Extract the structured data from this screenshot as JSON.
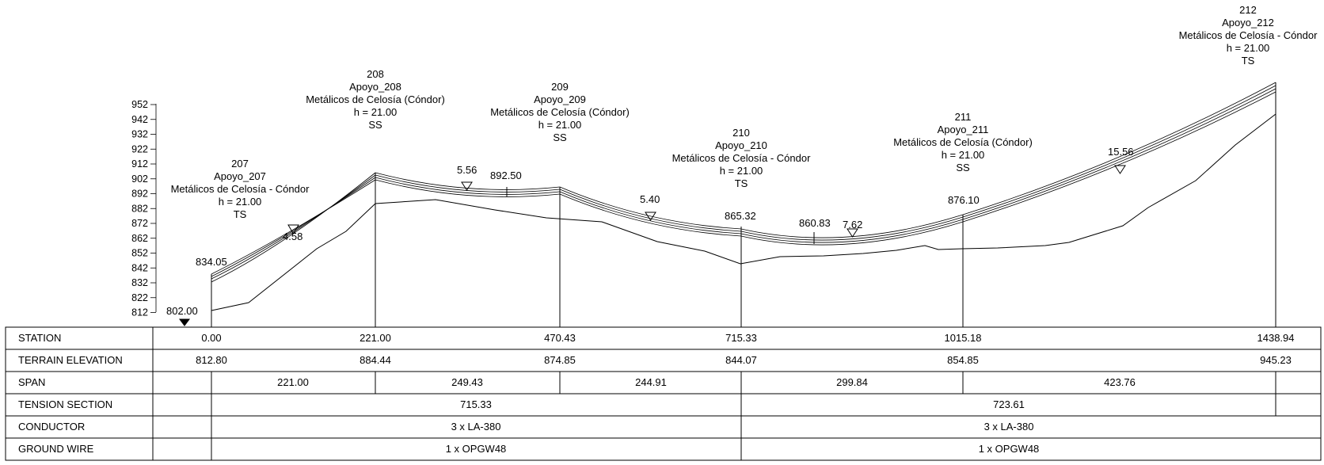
{
  "elevation_axis": {
    "ticks": [
      "952",
      "942",
      "932",
      "922",
      "912",
      "902",
      "892",
      "882",
      "872",
      "862",
      "852",
      "842",
      "832",
      "822",
      "812"
    ]
  },
  "supports": [
    {
      "number": "207",
      "name": "Apoyo_207",
      "type": "Metálicos de Celosía - Cóndor",
      "height": "h = 21.00",
      "function": "TS",
      "station": 0.0,
      "terrain": 812.8
    },
    {
      "number": "208",
      "name": "Apoyo_208",
      "type": "Metálicos de Celosía (Cóndor)",
      "height": "h = 21.00",
      "function": "SS",
      "station": 221.0,
      "terrain": 884.44
    },
    {
      "number": "209",
      "name": "Apoyo_209",
      "type": "Metálicos de Celosía (Cóndor)",
      "height": "h = 21.00",
      "function": "SS",
      "station": 470.43,
      "terrain": 874.85
    },
    {
      "number": "210",
      "name": "Apoyo_210",
      "type": "Metálicos de Celosía - Cóndor",
      "height": "h = 21.00",
      "function": "TS",
      "station": 715.33,
      "terrain": 844.07
    },
    {
      "number": "211",
      "name": "Apoyo_211",
      "type": "Metálicos de Celosía (Cóndor)",
      "height": "h = 21.00",
      "function": "SS",
      "station": 1015.18,
      "terrain": 854.85
    },
    {
      "number": "212",
      "name": "Apoyo_212",
      "type": "Metálicos de Celosía - Cóndor",
      "height": "h = 21.00",
      "function": "TS",
      "station": 1438.94,
      "terrain": 945.23
    }
  ],
  "annotations": {
    "start_elevation": "802.00",
    "attach_207": "834.05",
    "clearances": [
      "4.58",
      "5.56",
      "5.40",
      "7.62",
      "15.56"
    ],
    "point_892": "892.50",
    "point_865": "865.32",
    "point_860": "860.83",
    "point_876": "876.10"
  },
  "table": {
    "row_labels": {
      "station": "STATION",
      "terrain": "TERRAIN ELEVATION",
      "span": "SPAN",
      "tension": "TENSION SECTION",
      "conductor": "CONDUCTOR",
      "ground_wire": "GROUND WIRE"
    },
    "stations": [
      "0.00",
      "221.00",
      "470.43",
      "715.33",
      "1015.18",
      "1438.94"
    ],
    "terrain_elevations": [
      "812.80",
      "884.44",
      "874.85",
      "844.07",
      "854.85",
      "945.23"
    ],
    "spans": [
      "221.00",
      "249.43",
      "244.91",
      "299.84",
      "423.76"
    ],
    "tension_sections": [
      "715.33",
      "723.61"
    ],
    "conductors": [
      "3 x LA-380",
      "3 x LA-380"
    ],
    "ground_wires": [
      "1 x OPGW48",
      "1 x OPGW48"
    ]
  }
}
